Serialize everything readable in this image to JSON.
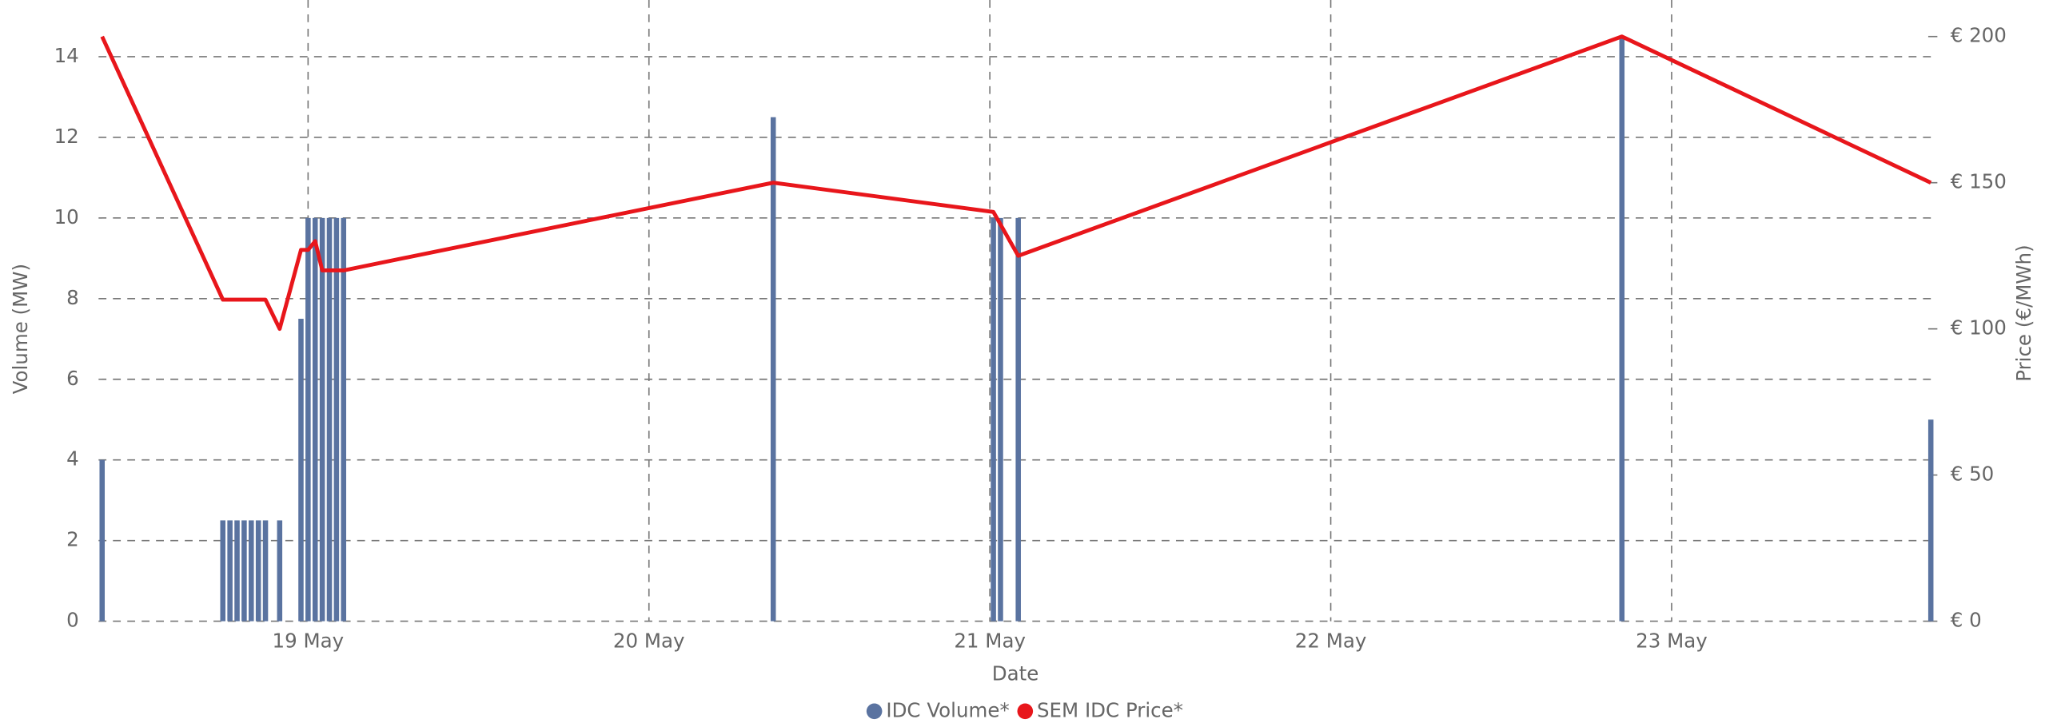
{
  "chart_data": {
    "type": "combo",
    "x_label": "Date",
    "y_label": "Volume (MW)",
    "y2_label": "Price (€/MWh)",
    "xlim": [
      "18 May 09:15",
      "23 May 18:15"
    ],
    "xticks": [
      "19 May",
      "20 May",
      "21 May",
      "22 May",
      "23 May"
    ],
    "ylim": [
      0,
      14.5
    ],
    "yticks": [
      0,
      2,
      4,
      6,
      8,
      10,
      12,
      14
    ],
    "y2lim": [
      0,
      200
    ],
    "y2ticks": [
      {
        "value": 0,
        "label": "€ 0"
      },
      {
        "value": 50,
        "label": "€ 50"
      },
      {
        "value": 100,
        "label": "€ 100"
      },
      {
        "value": 150,
        "label": "€ 150"
      },
      {
        "value": 200,
        "label": "€ 200"
      }
    ],
    "grid": true,
    "legend": "bottom",
    "series": [
      {
        "name": "IDC Volume*",
        "type": "bar",
        "color": "#5a73a0",
        "x": [
          "18 May 09:30",
          "18 May 18:00",
          "18 May 18:30",
          "18 May 19:00",
          "18 May 19:30",
          "18 May 20:00",
          "18 May 20:30",
          "18 May 21:00",
          "18 May 22:00",
          "18 May 23:30",
          "19 May 00:00",
          "19 May 00:30",
          "19 May 01:00",
          "19 May 01:30",
          "19 May 02:00",
          "19 May 02:30",
          "20 May 08:45",
          "21 May 00:15",
          "21 May 00:45",
          "21 May 02:00",
          "22 May 20:30",
          "23 May 18:15"
        ],
        "values": [
          4,
          2.5,
          2.5,
          2.5,
          2.5,
          2.5,
          2.5,
          2.5,
          2.5,
          7.5,
          10,
          10,
          10,
          10,
          10,
          10,
          12.5,
          10,
          10,
          10,
          14.5,
          5
        ]
      },
      {
        "name": "SEM IDC Price*",
        "type": "line",
        "axis": "y2",
        "color": "#e8161b",
        "x": [
          "18 May 09:30",
          "18 May 18:00",
          "18 May 21:00",
          "18 May 22:00",
          "18 May 23:30",
          "19 May 00:00",
          "19 May 00:30",
          "19 May 01:00",
          "19 May 02:30",
          "20 May 08:45",
          "21 May 00:15",
          "21 May 02:00",
          "22 May 20:30",
          "23 May 18:15"
        ],
        "values": [
          200,
          110,
          110,
          100,
          127,
          127,
          130,
          120,
          120,
          150,
          140,
          125,
          200,
          150
        ]
      }
    ]
  }
}
